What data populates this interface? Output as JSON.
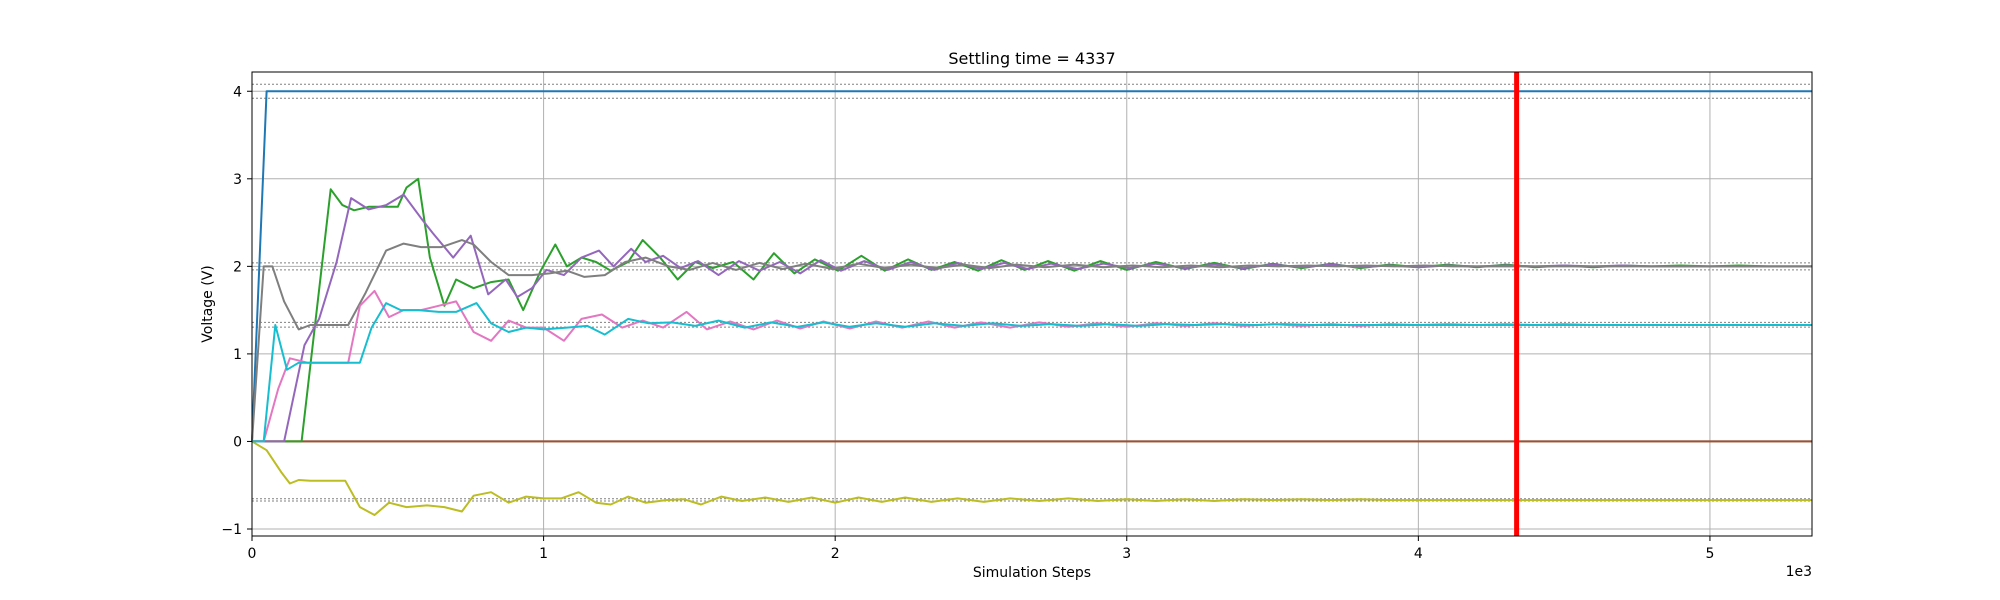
{
  "chart_data": {
    "type": "line",
    "title": "Settling time = 4337",
    "xlabel": "Simulation Steps",
    "ylabel": "Voltage (V)",
    "x_multiplier_label": "1e3",
    "xlim": [
      0,
      5350
    ],
    "ylim": [
      -1.08,
      4.22
    ],
    "x_ticks": [
      0,
      1000,
      2000,
      3000,
      4000,
      5000
    ],
    "x_tick_labels": [
      "0",
      "1",
      "2",
      "3",
      "4",
      "5"
    ],
    "y_ticks": [
      -1,
      0,
      1,
      2,
      3,
      4
    ],
    "y_tick_labels": [
      "−1",
      "0",
      "1",
      "2",
      "3",
      "4"
    ],
    "grid": true,
    "settling_time": 4337,
    "settling_line_color": "#ff0000",
    "tolerance_bands": [
      {
        "center": 4.0,
        "half_width": 0.08
      },
      {
        "center": 2.0,
        "half_width": 0.04
      },
      {
        "center": 1.333,
        "half_width": 0.027
      },
      {
        "center": -0.667,
        "half_width": 0.013
      }
    ],
    "series": [
      {
        "color": "#1f77b4",
        "x": [
          0,
          50,
          5350
        ],
        "y": [
          0,
          4.0,
          4.0
        ]
      },
      {
        "color": "#ff7f0e",
        "x": [
          0,
          5350
        ],
        "y": [
          0,
          0
        ]
      },
      {
        "color": "#8c564b",
        "x": [
          0,
          5350
        ],
        "y": [
          0,
          0
        ]
      },
      {
        "color": "#2ca02c",
        "x": [
          0,
          170,
          270,
          310,
          350,
          400,
          450,
          500,
          530,
          570,
          610,
          660,
          700,
          760,
          820,
          880,
          930,
          990,
          1040,
          1080,
          1130,
          1180,
          1230,
          1290,
          1340,
          1400,
          1460,
          1520,
          1580,
          1650,
          1720,
          1790,
          1860,
          1930,
          2010,
          2090,
          2170,
          2250,
          2330,
          2410,
          2490,
          2570,
          2650,
          2730,
          2820,
          2910,
          3000,
          3100,
          3200,
          3300,
          3400,
          3500,
          3600,
          3700,
          3800,
          3900,
          4000,
          4100,
          4200,
          4300,
          4400,
          4500,
          4600,
          4700,
          4800,
          4900,
          5000,
          5100,
          5200,
          5350
        ],
        "y": [
          0,
          0,
          2.88,
          2.7,
          2.64,
          2.68,
          2.68,
          2.68,
          2.9,
          3.0,
          2.1,
          1.55,
          1.85,
          1.75,
          1.82,
          1.85,
          1.5,
          1.95,
          2.25,
          2.0,
          2.1,
          2.05,
          1.95,
          2.05,
          2.3,
          2.1,
          1.85,
          2.05,
          1.98,
          2.05,
          1.85,
          2.15,
          1.92,
          2.08,
          1.95,
          2.12,
          1.95,
          2.08,
          1.96,
          2.05,
          1.95,
          2.07,
          1.96,
          2.06,
          1.95,
          2.06,
          1.96,
          2.05,
          1.97,
          2.04,
          1.97,
          2.03,
          1.98,
          2.03,
          1.98,
          2.02,
          1.99,
          2.02,
          1.99,
          2.02,
          1.99,
          2.01,
          1.99,
          2.01,
          2.0,
          2.01,
          2.0,
          2.01,
          2.0,
          2.0
        ]
      },
      {
        "color": "#9467bd",
        "x": [
          0,
          110,
          180,
          230,
          290,
          340,
          400,
          460,
          520,
          580,
          620,
          690,
          750,
          810,
          870,
          910,
          960,
          1010,
          1070,
          1130,
          1190,
          1240,
          1300,
          1350,
          1410,
          1470,
          1530,
          1600,
          1670,
          1740,
          1810,
          1880,
          1950,
          2020,
          2100,
          2180,
          2260,
          2340,
          2420,
          2500,
          2580,
          2660,
          2740,
          2830,
          2920,
          3010,
          3100,
          3200,
          3300,
          3400,
          3500,
          3600,
          3700,
          3800,
          3900,
          4000,
          4100,
          4200,
          4300,
          4400,
          4500,
          4600,
          4700,
          4800,
          4900,
          5000,
          5100,
          5200,
          5350
        ],
        "y": [
          0,
          0,
          1.1,
          1.4,
          2.05,
          2.78,
          2.65,
          2.7,
          2.82,
          2.55,
          2.38,
          2.1,
          2.35,
          1.68,
          1.85,
          1.65,
          1.75,
          1.96,
          1.9,
          2.1,
          2.18,
          2.0,
          2.2,
          2.05,
          2.12,
          1.98,
          2.06,
          1.9,
          2.06,
          1.95,
          2.05,
          1.92,
          2.07,
          1.95,
          2.06,
          1.96,
          2.05,
          1.96,
          2.04,
          1.97,
          2.04,
          1.97,
          2.03,
          1.97,
          2.03,
          1.98,
          2.03,
          1.98,
          2.02,
          1.98,
          2.02,
          1.99,
          2.02,
          1.99,
          2.01,
          1.99,
          2.01,
          2.0,
          2.01,
          2.0,
          2.01,
          2.0,
          2.01,
          2.0,
          2.0,
          2.0,
          2.0,
          2.0,
          2.0
        ]
      },
      {
        "color": "#7f7f7f",
        "x": [
          0,
          40,
          70,
          110,
          160,
          200,
          250,
          330,
          390,
          460,
          520,
          580,
          650,
          720,
          760,
          820,
          880,
          960,
          1020,
          1080,
          1140,
          1210,
          1280,
          1350,
          1430,
          1500,
          1580,
          1660,
          1740,
          1820,
          1900,
          1990,
          2080,
          2170,
          2260,
          2350,
          2440,
          2530,
          2620,
          2720,
          2820,
          2920,
          3020,
          3120,
          3220,
          3320,
          3420,
          3520,
          3620,
          3720,
          3820,
          3920,
          4020,
          4120,
          4220,
          4320,
          4420,
          4520,
          4620,
          4720,
          4820,
          4920,
          5020,
          5120,
          5220,
          5350
        ],
        "y": [
          0,
          2.0,
          2.0,
          1.6,
          1.28,
          1.33,
          1.33,
          1.33,
          1.7,
          2.18,
          2.26,
          2.22,
          2.22,
          2.3,
          2.25,
          2.05,
          1.9,
          1.9,
          1.92,
          1.95,
          1.88,
          1.9,
          2.05,
          2.1,
          2.0,
          1.96,
          2.04,
          1.96,
          2.04,
          1.97,
          2.03,
          1.97,
          2.03,
          1.98,
          2.02,
          1.98,
          2.02,
          1.98,
          2.02,
          1.99,
          2.02,
          1.99,
          2.01,
          1.99,
          2.01,
          1.99,
          2.01,
          2.0,
          2.01,
          2.0,
          2.01,
          2.0,
          2.01,
          2.0,
          2.0,
          2.0,
          2.0,
          2.0,
          2.0,
          2.0,
          2.0,
          2.0,
          2.0,
          2.0,
          2.0,
          2.0
        ]
      },
      {
        "color": "#e377c2",
        "x": [
          0,
          40,
          90,
          130,
          190,
          260,
          330,
          370,
          420,
          470,
          520,
          580,
          640,
          700,
          760,
          820,
          880,
          940,
          1000,
          1070,
          1130,
          1200,
          1270,
          1340,
          1410,
          1490,
          1560,
          1640,
          1720,
          1800,
          1880,
          1960,
          2050,
          2140,
          2230,
          2320,
          2410,
          2500,
          2600,
          2700,
          2800,
          2900,
          3000,
          3100,
          3200,
          3300,
          3400,
          3500,
          3600,
          3700,
          3800,
          3900,
          4000,
          4100,
          4200,
          4300,
          4400,
          4500,
          4600,
          4700,
          4800,
          4900,
          5000,
          5100,
          5200,
          5350
        ],
        "y": [
          0,
          0,
          0.6,
          0.95,
          0.9,
          0.9,
          0.9,
          1.55,
          1.72,
          1.42,
          1.5,
          1.5,
          1.55,
          1.6,
          1.25,
          1.15,
          1.38,
          1.3,
          1.3,
          1.15,
          1.4,
          1.45,
          1.3,
          1.38,
          1.3,
          1.48,
          1.28,
          1.37,
          1.28,
          1.38,
          1.29,
          1.37,
          1.29,
          1.37,
          1.3,
          1.37,
          1.3,
          1.36,
          1.3,
          1.36,
          1.31,
          1.35,
          1.31,
          1.35,
          1.32,
          1.35,
          1.32,
          1.34,
          1.32,
          1.34,
          1.32,
          1.34,
          1.33,
          1.34,
          1.33,
          1.34,
          1.33,
          1.34,
          1.33,
          1.33,
          1.33,
          1.33,
          1.33,
          1.33,
          1.33,
          1.33
        ]
      },
      {
        "color": "#bcbd22",
        "x": [
          0,
          50,
          100,
          130,
          160,
          200,
          260,
          320,
          370,
          420,
          470,
          530,
          600,
          660,
          720,
          760,
          820,
          880,
          940,
          1000,
          1060,
          1120,
          1180,
          1230,
          1290,
          1350,
          1420,
          1480,
          1540,
          1610,
          1680,
          1760,
          1840,
          1920,
          2000,
          2080,
          2160,
          2240,
          2330,
          2420,
          2510,
          2600,
          2700,
          2800,
          2900,
          3000,
          3100,
          3200,
          3300,
          3400,
          3500,
          3600,
          3700,
          3800,
          3900,
          4000,
          4100,
          4200,
          4300,
          4400,
          4500,
          4600,
          4700,
          4800,
          4900,
          5000,
          5100,
          5200,
          5350
        ],
        "y": [
          0,
          -0.1,
          -0.35,
          -0.48,
          -0.44,
          -0.45,
          -0.45,
          -0.45,
          -0.75,
          -0.84,
          -0.7,
          -0.75,
          -0.73,
          -0.75,
          -0.8,
          -0.62,
          -0.58,
          -0.7,
          -0.63,
          -0.65,
          -0.65,
          -0.58,
          -0.7,
          -0.72,
          -0.63,
          -0.7,
          -0.67,
          -0.66,
          -0.72,
          -0.63,
          -0.68,
          -0.64,
          -0.69,
          -0.64,
          -0.7,
          -0.64,
          -0.69,
          -0.64,
          -0.69,
          -0.65,
          -0.69,
          -0.65,
          -0.68,
          -0.65,
          -0.68,
          -0.66,
          -0.68,
          -0.66,
          -0.68,
          -0.66,
          -0.67,
          -0.66,
          -0.67,
          -0.66,
          -0.67,
          -0.67,
          -0.67,
          -0.67,
          -0.67,
          -0.67,
          -0.67,
          -0.67,
          -0.67,
          -0.67,
          -0.67,
          -0.67,
          -0.67,
          -0.67,
          -0.67
        ]
      },
      {
        "color": "#17becf",
        "x": [
          0,
          40,
          80,
          120,
          160,
          210,
          280,
          370,
          410,
          460,
          510,
          570,
          640,
          700,
          770,
          820,
          880,
          940,
          1000,
          1080,
          1150,
          1210,
          1290,
          1360,
          1440,
          1520,
          1600,
          1690,
          1780,
          1870,
          1960,
          2050,
          2140,
          2240,
          2340,
          2440,
          2540,
          2640,
          2740,
          2840,
          2940,
          3040,
          3140,
          3240,
          3340,
          3440,
          3540,
          3640,
          3740,
          3840,
          3940,
          4040,
          4140,
          4240,
          4340,
          4440,
          4540,
          4640,
          4740,
          4840,
          4940,
          5040,
          5140,
          5240,
          5350
        ],
        "y": [
          0,
          0,
          1.33,
          0.82,
          0.9,
          0.9,
          0.9,
          0.9,
          1.3,
          1.58,
          1.5,
          1.5,
          1.48,
          1.48,
          1.58,
          1.35,
          1.25,
          1.3,
          1.28,
          1.3,
          1.32,
          1.22,
          1.4,
          1.35,
          1.36,
          1.32,
          1.38,
          1.3,
          1.36,
          1.31,
          1.36,
          1.31,
          1.35,
          1.31,
          1.35,
          1.32,
          1.35,
          1.32,
          1.34,
          1.32,
          1.34,
          1.32,
          1.34,
          1.33,
          1.34,
          1.33,
          1.34,
          1.33,
          1.33,
          1.33,
          1.33,
          1.33,
          1.33,
          1.33,
          1.33,
          1.33,
          1.33,
          1.33,
          1.33,
          1.33,
          1.33,
          1.33,
          1.33,
          1.33,
          1.33
        ]
      }
    ]
  }
}
